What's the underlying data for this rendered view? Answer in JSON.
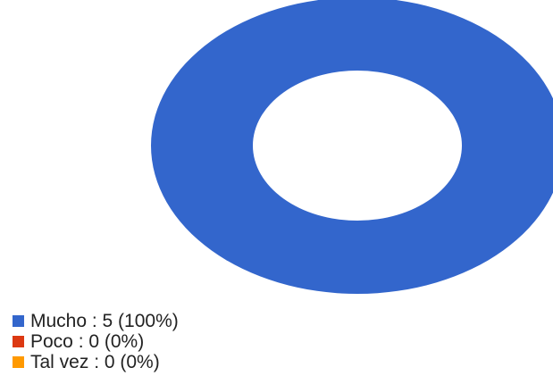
{
  "chart_data": {
    "type": "pie",
    "donut": true,
    "legend_position": "bottom-left",
    "slices": [
      {
        "label": "Mucho",
        "value": 5,
        "percent": "100%",
        "color": "#3366cc",
        "legend_text": "Mucho : 5 (100%)"
      },
      {
        "label": "Poco",
        "value": 0,
        "percent": "0%",
        "color": "#dc3912",
        "legend_text": "Poco : 0 (0%)"
      },
      {
        "label": "Tal vez",
        "value": 0,
        "percent": "0%",
        "color": "#ff9900",
        "legend_text": "Tal vez : 0 (0%)"
      }
    ]
  }
}
